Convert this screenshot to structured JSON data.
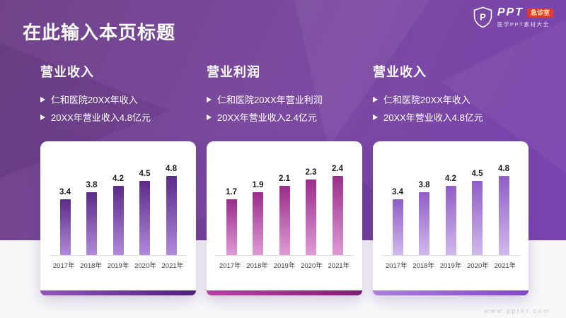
{
  "slide": {
    "title": "在此输入本页标题",
    "watermark": "www.ppter.com",
    "colors": {
      "background_purple": "#7b4a9f",
      "bottom_band": "#f7f6f9",
      "title_text": "#ffffff"
    }
  },
  "logo": {
    "brand": "PPT",
    "badge": "急诊室",
    "badge_color": "#e23a2d",
    "subtitle": "医学PPT素材大全"
  },
  "sections": [
    {
      "heading": "营业收入",
      "bullets": [
        "仁和医院20XX年收入",
        "20XX年营业收入4.8亿元"
      ]
    },
    {
      "heading": "营业利润",
      "bullets": [
        "仁和医院20XX年营业利润",
        "20XX年营业收入2.4亿元"
      ]
    },
    {
      "heading": "营业收入",
      "bullets": [
        "仁和医院20XX年收入",
        "20XX年营业收入4.8亿元"
      ]
    }
  ],
  "chart_data": [
    {
      "type": "bar",
      "title": "营业收入",
      "categories": [
        "2017年",
        "2018年",
        "2019年",
        "2020年",
        "2021年"
      ],
      "values": [
        3.4,
        3.8,
        4.2,
        4.5,
        4.8
      ],
      "unit": "亿元",
      "xlabel": "",
      "ylabel": "",
      "ylim": [
        0,
        4.8
      ],
      "grid": false,
      "value_labels_shown": true,
      "bar_color_top": "#5a2b87",
      "bar_color_bottom": "#b18adb",
      "strip_gradient": [
        "#9257ba",
        "#4f1f79"
      ]
    },
    {
      "type": "bar",
      "title": "营业利润",
      "categories": [
        "2017年",
        "2018年",
        "2019年",
        "2020年",
        "2021年"
      ],
      "values": [
        1.7,
        1.9,
        2.1,
        2.3,
        2.4
      ],
      "unit": "亿元",
      "xlabel": "",
      "ylabel": "",
      "ylim": [
        0,
        2.4
      ],
      "grid": false,
      "value_labels_shown": true,
      "bar_color_top": "#9a2d8a",
      "bar_color_bottom": "#df9bd6",
      "strip_gradient": [
        "#b842a2",
        "#7c2071"
      ]
    },
    {
      "type": "bar",
      "title": "营业收入",
      "categories": [
        "2017年",
        "2018年",
        "2019年",
        "2020年",
        "2021年"
      ],
      "values": [
        3.4,
        3.8,
        4.2,
        4.5,
        4.8
      ],
      "unit": "亿元",
      "xlabel": "",
      "ylabel": "",
      "ylim": [
        0,
        4.8
      ],
      "grid": false,
      "value_labels_shown": true,
      "bar_color_top": "#8f5ec7",
      "bar_color_bottom": "#d2b9ec",
      "strip_gradient": [
        "#ab80da",
        "#8147c5"
      ]
    }
  ]
}
